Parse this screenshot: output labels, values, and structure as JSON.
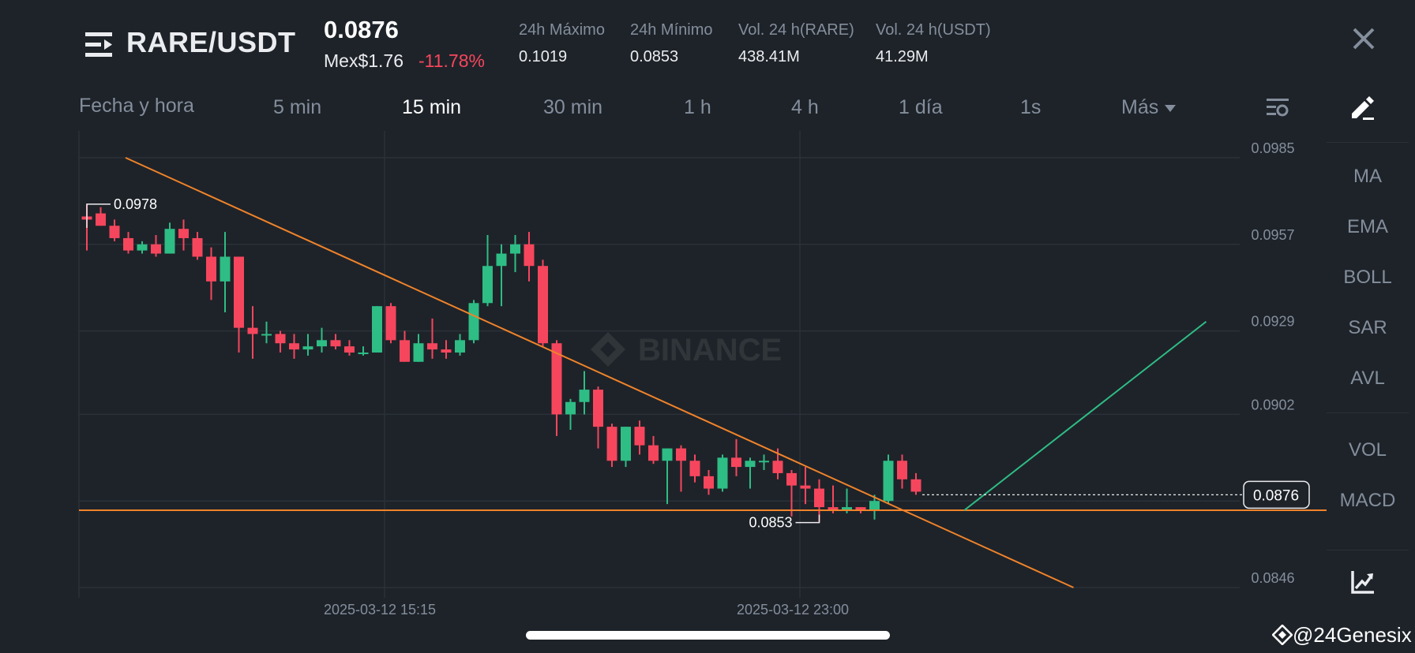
{
  "header": {
    "pair": "RARE/USDT",
    "price": "0.0876",
    "fiat_price": "Mex$1.76",
    "change": "-11.78%",
    "stats": [
      {
        "label": "24h Máximo",
        "value": "0.1019"
      },
      {
        "label": "24h Mínimo",
        "value": "0.0853"
      },
      {
        "label": "Vol. 24 h(RARE)",
        "value": "438.41M"
      },
      {
        "label": "Vol. 24 h(USDT)",
        "value": "41.29M"
      }
    ]
  },
  "timeframes": {
    "items": [
      "Fecha y hora",
      "5 min",
      "15 min",
      "30 min",
      "1 h",
      "4 h",
      "1 día",
      "1s",
      "Más"
    ],
    "active": "15 min"
  },
  "indicators": [
    "MA",
    "EMA",
    "BOLL",
    "SAR",
    "AVL",
    "VOL",
    "MACD"
  ],
  "watermark_handle": "@24Genesix",
  "chart_watermark": "BINANCE",
  "icons": {
    "menu": "menu-lines-icon",
    "close": "close-icon",
    "settings": "chart-settings-icon",
    "draw": "drawing-pen-icon",
    "chart_tools": "chart-trend-icon",
    "watermark": "binance-logo-icon"
  },
  "colors": {
    "background": "#1e2329",
    "up": "#2ebd85",
    "down": "#f6465d",
    "trendline": "#f0832a",
    "projection": "#2ebd85"
  },
  "chart_data": {
    "type": "candlestick",
    "ylim": [
      0.0846,
      0.0985
    ],
    "y_ticks": [
      "0.0985",
      "0.0957",
      "0.0929",
      "0.0902",
      "0.0846"
    ],
    "x_ticks": [
      "2025-03-12 15:15",
      "2025-03-12 23:00"
    ],
    "current_price": "0.0876",
    "high_annotation": "0.0978",
    "low_annotation": "0.0853",
    "grid": true,
    "candles": [
      [
        0.0966,
        0.0965,
        0.097,
        0.0955
      ],
      [
        0.0967,
        0.0963,
        0.0969,
        0.0963
      ],
      [
        0.0963,
        0.0959,
        0.0965,
        0.0958
      ],
      [
        0.0959,
        0.0955,
        0.0961,
        0.0954
      ],
      [
        0.0955,
        0.0957,
        0.0958,
        0.0954
      ],
      [
        0.0957,
        0.0954,
        0.096,
        0.0953
      ],
      [
        0.0954,
        0.0962,
        0.0964,
        0.0954
      ],
      [
        0.0962,
        0.0959,
        0.0965,
        0.0955
      ],
      [
        0.0959,
        0.0953,
        0.0961,
        0.0952
      ],
      [
        0.0953,
        0.0945,
        0.0956,
        0.0939
      ],
      [
        0.0945,
        0.0953,
        0.0961,
        0.0935
      ],
      [
        0.0953,
        0.093,
        0.0953,
        0.0922
      ],
      [
        0.093,
        0.0928,
        0.0937,
        0.092
      ],
      [
        0.0928,
        0.0928,
        0.0932,
        0.0925
      ],
      [
        0.0928,
        0.0925,
        0.0929,
        0.0922
      ],
      [
        0.0925,
        0.0923,
        0.0928,
        0.092
      ],
      [
        0.0923,
        0.0924,
        0.0928,
        0.0921
      ],
      [
        0.0924,
        0.0926,
        0.093,
        0.0922
      ],
      [
        0.0926,
        0.0924,
        0.0928,
        0.0923
      ],
      [
        0.0924,
        0.0922,
        0.0926,
        0.0921
      ],
      [
        0.0922,
        0.0922,
        0.0924,
        0.0921
      ],
      [
        0.0922,
        0.0937,
        0.0937,
        0.0922
      ],
      [
        0.0937,
        0.0926,
        0.0938,
        0.0925
      ],
      [
        0.0926,
        0.0919,
        0.0929,
        0.0919
      ],
      [
        0.0919,
        0.0925,
        0.0928,
        0.0919
      ],
      [
        0.0925,
        0.0923,
        0.0933,
        0.092
      ],
      [
        0.0923,
        0.0922,
        0.0926,
        0.092
      ],
      [
        0.0922,
        0.0926,
        0.0928,
        0.0921
      ],
      [
        0.0926,
        0.0938,
        0.0939,
        0.0925
      ],
      [
        0.0938,
        0.095,
        0.096,
        0.0937
      ],
      [
        0.095,
        0.0954,
        0.0957,
        0.0937
      ],
      [
        0.0954,
        0.0957,
        0.096,
        0.0948
      ],
      [
        0.0957,
        0.095,
        0.0961,
        0.0945
      ],
      [
        0.095,
        0.0925,
        0.0952,
        0.0924
      ],
      [
        0.0925,
        0.0902,
        0.0926,
        0.0895
      ],
      [
        0.0902,
        0.0906,
        0.0907,
        0.0897
      ],
      [
        0.0906,
        0.091,
        0.0916,
        0.0902
      ],
      [
        0.091,
        0.0898,
        0.0911,
        0.0891
      ],
      [
        0.0898,
        0.0887,
        0.0899,
        0.0885
      ],
      [
        0.0887,
        0.0898,
        0.0898,
        0.0885
      ],
      [
        0.0898,
        0.0892,
        0.09,
        0.0889
      ],
      [
        0.0892,
        0.0887,
        0.0895,
        0.0886
      ],
      [
        0.0887,
        0.0891,
        0.0891,
        0.0873
      ],
      [
        0.0891,
        0.0887,
        0.0892,
        0.0877
      ],
      [
        0.0887,
        0.0882,
        0.0889,
        0.088
      ],
      [
        0.0882,
        0.0878,
        0.0884,
        0.0876
      ],
      [
        0.0878,
        0.0888,
        0.0889,
        0.0877
      ],
      [
        0.0888,
        0.0885,
        0.0894,
        0.0882
      ],
      [
        0.0885,
        0.0887,
        0.0888,
        0.0878
      ],
      [
        0.0887,
        0.0887,
        0.0889,
        0.0884
      ],
      [
        0.0887,
        0.0883,
        0.0891,
        0.0881
      ],
      [
        0.0883,
        0.0879,
        0.0884,
        0.0869
      ],
      [
        0.0879,
        0.0878,
        0.0885,
        0.0873
      ],
      [
        0.0878,
        0.0872,
        0.0881,
        0.0867
      ],
      [
        0.0872,
        0.0871,
        0.0879,
        0.087
      ],
      [
        0.0871,
        0.0872,
        0.0878,
        0.087
      ],
      [
        0.0872,
        0.0871,
        0.0872,
        0.087
      ],
      [
        0.0871,
        0.0874,
        0.0876,
        0.0868
      ],
      [
        0.0874,
        0.0887,
        0.0889,
        0.0873
      ],
      [
        0.0887,
        0.0881,
        0.0889,
        0.0878
      ],
      [
        0.0881,
        0.0877,
        0.0883,
        0.0876
      ]
    ],
    "trendline": [
      [
        2.8,
        0.0985
      ],
      [
        71.4,
        0.0846
      ]
    ],
    "support": 0.0871,
    "projection": [
      [
        63.5,
        0.0871
      ],
      [
        81.0,
        0.0932
      ]
    ]
  }
}
